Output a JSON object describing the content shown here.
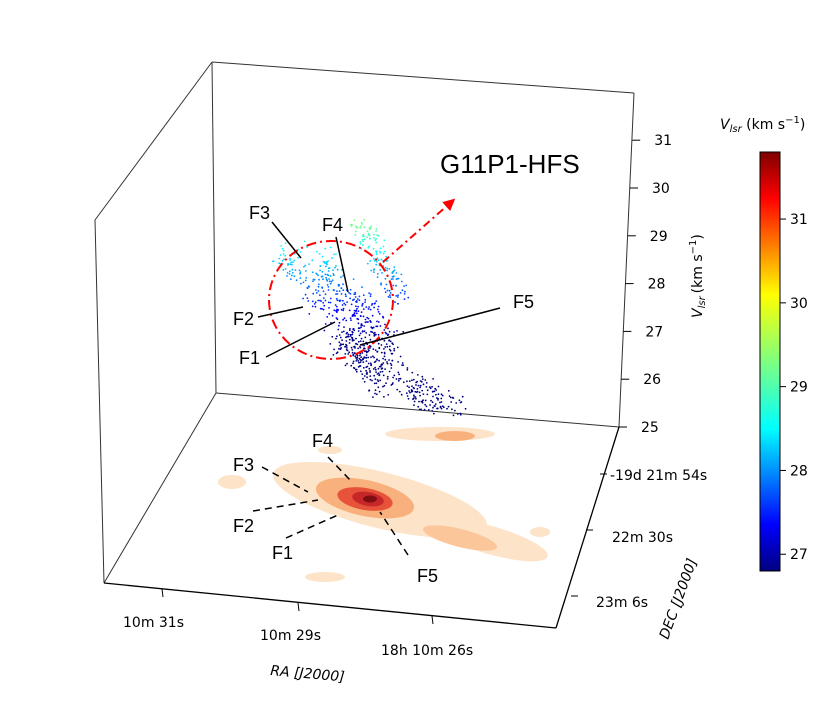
{
  "chart_data": {
    "type": "scatter",
    "title": "G11P1-HFS",
    "x_axis": {
      "label": "RA [J2000]",
      "ticks": [
        "10m 31s",
        "10m 29s",
        "18h 10m 26s"
      ]
    },
    "y_axis": {
      "label": "DEC [J2000]",
      "ticks": [
        "-19d 21m 54s",
        "22m 30s",
        "23m 6s"
      ]
    },
    "z_axis": {
      "label_main": "V",
      "label_sub": "lsr",
      "label_unit": "(km s",
      "label_exp": "−1",
      "label_close": ")",
      "range": [
        25,
        31.8
      ],
      "ticks": [
        "25",
        "26",
        "27",
        "28",
        "29",
        "30",
        "31"
      ]
    },
    "colorbar": {
      "label_main": "V",
      "label_sub": "lsr",
      "label_unit": " (km s",
      "label_exp": "−1",
      "label_close": ")",
      "range": [
        26.8,
        31.8
      ],
      "colormap": "jet",
      "ticks": [
        "27",
        "28",
        "29",
        "30",
        "31"
      ]
    },
    "filament_labels_3d": [
      "F1",
      "F2",
      "F3",
      "F4",
      "F5"
    ],
    "filament_labels_plane": [
      "F1",
      "F2",
      "F3",
      "F4",
      "F5"
    ],
    "annotations": {
      "hub_marker": "dash-dot red circle around hub",
      "arrow": "red dash-dot arrow toward G11P1-HFS"
    }
  },
  "colors": {
    "annotation_red": "#ff0000",
    "axis": "#000000",
    "contour_light": "#fde3c7",
    "contour_mid": "#f8b17c",
    "contour_high": "#e7533a",
    "contour_peak": "#a50f15"
  }
}
